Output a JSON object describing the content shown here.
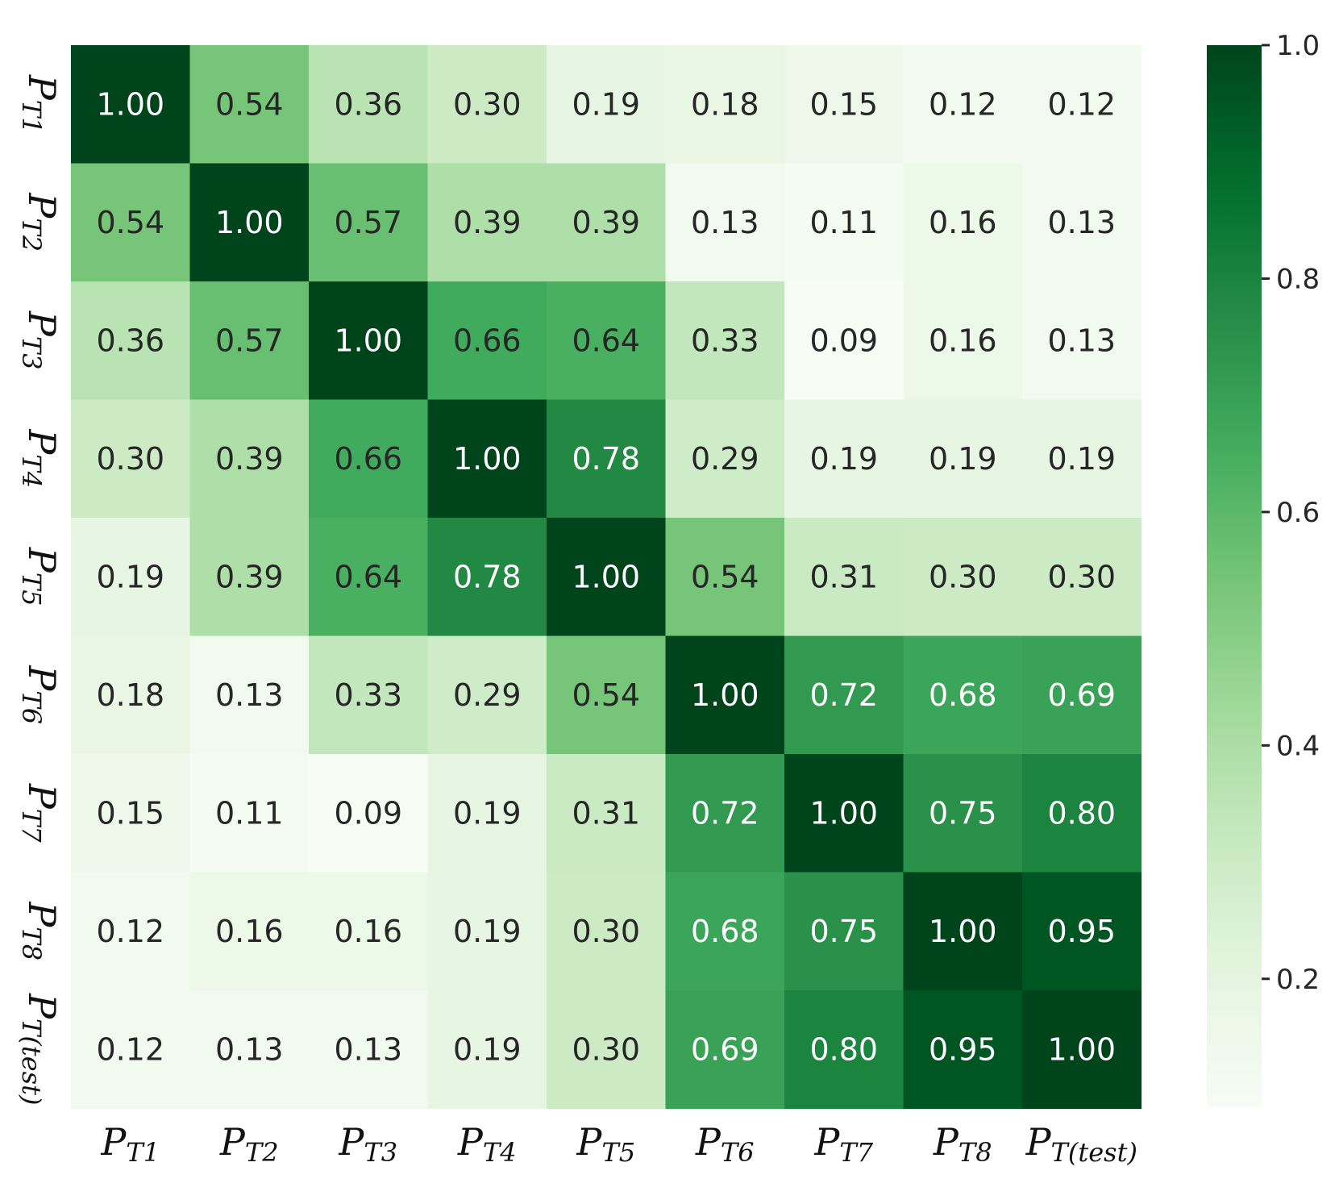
{
  "chart_data": {
    "type": "heatmap",
    "title": "",
    "xlabel": "",
    "ylabel": "",
    "labels": [
      {
        "base": "P",
        "sub": "T1"
      },
      {
        "base": "P",
        "sub": "T2"
      },
      {
        "base": "P",
        "sub": "T3"
      },
      {
        "base": "P",
        "sub": "T4"
      },
      {
        "base": "P",
        "sub": "T5"
      },
      {
        "base": "P",
        "sub": "T6"
      },
      {
        "base": "P",
        "sub": "T7"
      },
      {
        "base": "P",
        "sub": "T8"
      },
      {
        "base": "P",
        "sub": "T(test)"
      }
    ],
    "values": [
      [
        1.0,
        0.54,
        0.36,
        0.3,
        0.19,
        0.18,
        0.15,
        0.12,
        0.12
      ],
      [
        0.54,
        1.0,
        0.57,
        0.39,
        0.39,
        0.13,
        0.11,
        0.16,
        0.13
      ],
      [
        0.36,
        0.57,
        1.0,
        0.66,
        0.64,
        0.33,
        0.09,
        0.16,
        0.13
      ],
      [
        0.3,
        0.39,
        0.66,
        1.0,
        0.78,
        0.29,
        0.19,
        0.19,
        0.19
      ],
      [
        0.19,
        0.39,
        0.64,
        0.78,
        1.0,
        0.54,
        0.31,
        0.3,
        0.3
      ],
      [
        0.18,
        0.13,
        0.33,
        0.29,
        0.54,
        1.0,
        0.72,
        0.68,
        0.69
      ],
      [
        0.15,
        0.11,
        0.09,
        0.19,
        0.31,
        0.72,
        1.0,
        0.75,
        0.8
      ],
      [
        0.12,
        0.16,
        0.16,
        0.19,
        0.3,
        0.68,
        0.75,
        1.0,
        0.95
      ],
      [
        0.12,
        0.13,
        0.13,
        0.19,
        0.3,
        0.69,
        0.8,
        0.95,
        1.0
      ]
    ],
    "value_format": "0.00",
    "colormap": "Greens",
    "color_range": [
      0.09,
      1.0
    ],
    "colorbar": {
      "ticks": [
        0.2,
        0.4,
        0.6,
        0.8,
        1.0
      ],
      "tick_labels": [
        "0.2",
        "0.4",
        "0.6",
        "0.8",
        "1.0"
      ]
    },
    "grid": false,
    "legend": "colorbar-right"
  }
}
